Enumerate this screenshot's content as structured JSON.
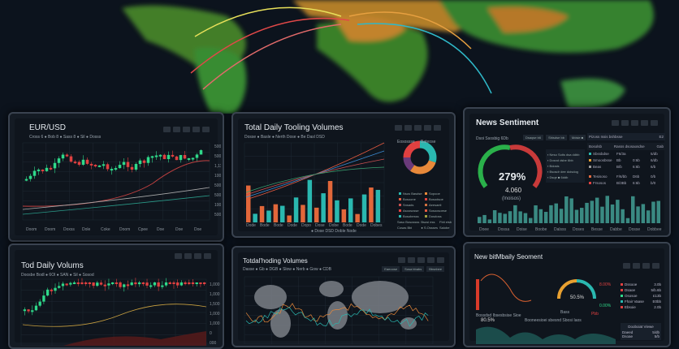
{
  "panels": {
    "eurusd": {
      "title": "EUR/USD",
      "legend": "Cross 6 ● Bob 8 ● Sass 8 ● Sil ● Dosss",
      "xlabels": [
        "Doom",
        "Doom",
        "Doxss",
        "Dole",
        "Coke",
        "Doom",
        "Cpee",
        "Doe",
        "Doe",
        "Doe"
      ],
      "ylabels": [
        "5000",
        "5000",
        "1,111",
        "1000",
        "5000",
        "5000",
        "1000",
        "5000"
      ]
    },
    "volumes": {
      "title": "Total Daily Tooling Volumes",
      "legend": "Dosse ● Basle ● Nerth Dose ● Be Dasl DSD",
      "xlabels": [
        "Dode",
        "Bode",
        "Bode",
        "Dode",
        "Dopo",
        "Dose",
        "Dobe",
        "Bode",
        "Dode",
        "Dobes"
      ],
      "footer": "● Dose DSD Doble Node",
      "donut_title_left": "Eosossse",
      "donut_title_right": "Bateose",
      "legend_items": [
        "Nsos Basdse",
        "Sopooe",
        "Bosoone",
        "Bosodsoe",
        "Snsads",
        "Aeesaeli",
        "Asoososse",
        "Sosoosoese",
        "Bosobesss",
        "Dosdoss"
      ],
      "stats": [
        "Saso Bosossss",
        "Bsosi ess",
        "Fbit eisb",
        "Cosas Bbi",
        "● S.Ossses",
        "Salobe"
      ]
    },
    "sentiment": {
      "title": "News Sentiment",
      "sub": "Dsoi Ssosbig 6Db",
      "chips": [
        "Dsaqse b6",
        "Shisdse bb",
        "Mdsie ■"
      ],
      "gauge_value": "279%",
      "gauge_number": "4.060",
      "gauge_label": "(Inoisos)",
      "gauge_fraction": 0.5,
      "list": [
        "Neso Sotis dsa ddbb",
        "Dosnd dsbe 6bb",
        "Bdosis",
        "Bsosdr dee doisdog",
        "Dsqe ■ 6ddb"
      ],
      "table_header": [
        "Pizoss Issis bshbsse",
        "E2"
      ],
      "table_cols": [
        "Bosolsb",
        "Rasss dsosaosdse",
        "Gab"
      ],
      "rows": [
        [
          "Sbssbdse",
          "F6/3a",
          "",
          "5/db"
        ],
        [
          "Smoosbsse",
          "Bb",
          "0:6b",
          "6/db"
        ],
        [
          "Beas",
          "B/b",
          "6:6b",
          "6/b"
        ],
        [
          "Tesisoso",
          "F/6/bb",
          "D6b",
          "0/b"
        ],
        [
          "Frsosos",
          "B/3Bb",
          "6:6b",
          "b/0"
        ]
      ],
      "xlabels": [
        "Doee",
        "Dossa",
        "Doise",
        "Boobe",
        "Dalsss",
        "Doses",
        "Besse",
        "Dabbe",
        "Dosse",
        "Dobbee"
      ]
    },
    "daily": {
      "title": "Tod Daily Volums",
      "legend": "Doosbe Bodl ● 6Ol ● SAN ● Sil ● Sosod",
      "ylabels": [
        "1,000",
        "1,000",
        "1,500",
        "1,000",
        "1,000",
        "0",
        "000"
      ]
    },
    "worldvol": {
      "title": "Totdal'hoding Volumes",
      "legend": "Dasse ● Gb ● DGB ● Slow ● Nerb ● Gow ● CDB",
      "chips": [
        "Eaeoose",
        "Sosa bbabs",
        "Bbsnbee"
      ]
    },
    "newsdaily": {
      "title": "New bitMbaily Seoment",
      "gauge_value": "50.5%",
      "left_value": "80.5%",
      "chart_label": "Bossdsd Ibsesbsise Sioe",
      "chart_label2": "Booneesioei sbesnd Sbosi Iaos",
      "pct_a": "8.00%",
      "pct_b": "0.00%",
      "gauge_sub_left": "Bass",
      "gauge_sub_right": "Pbb",
      "list": [
        [
          "Dssooe",
          "3.0b"
        ],
        [
          "Dsaoe",
          "5/b.6b"
        ],
        [
          "Ososoe",
          "£13b"
        ],
        [
          "Fhair Vaase",
          "E0bb"
        ],
        [
          "Ebsoie",
          "2.0b"
        ]
      ],
      "box_title": "Dooboiat Viewe",
      "box_rows": [
        [
          "Daeed",
          "5/db"
        ],
        [
          "Dsoae",
          "5/b"
        ]
      ]
    }
  },
  "colors": {
    "up": "#2fd98a",
    "down": "#e04040",
    "teal": "#2ab8b0",
    "orange": "#e2673a",
    "bg": "#0c131d"
  }
}
